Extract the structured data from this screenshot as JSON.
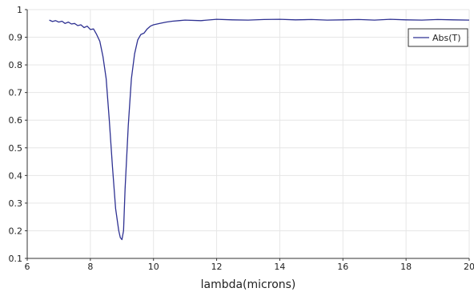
{
  "chart_data": {
    "type": "line",
    "title": "",
    "xlabel": "lambda(microns)",
    "ylabel": "",
    "xlim": [
      6,
      20
    ],
    "ylim": [
      0.1,
      1
    ],
    "xticks": [
      6,
      8,
      10,
      12,
      14,
      16,
      18,
      20
    ],
    "yticks": [
      0.1,
      0.2,
      0.3,
      0.4,
      0.5,
      0.6,
      0.7,
      0.8,
      0.9,
      1
    ],
    "xtick_labels": [
      "6",
      "8",
      "10",
      "12",
      "14",
      "16",
      "18",
      "20"
    ],
    "ytick_labels": [
      "0.1",
      "0.2",
      "0.3",
      "0.4",
      "0.5",
      "0.6",
      "0.7",
      "0.8",
      "0.9",
      "1"
    ],
    "grid": true,
    "legend_position": "top-right",
    "series": [
      {
        "name": "Abs(T)",
        "color": "#2e3192",
        "x": [
          6.7,
          6.8,
          6.9,
          7.0,
          7.1,
          7.2,
          7.3,
          7.4,
          7.5,
          7.6,
          7.7,
          7.8,
          7.9,
          8.0,
          8.1,
          8.2,
          8.3,
          8.4,
          8.5,
          8.6,
          8.7,
          8.8,
          8.9,
          8.95,
          9.0,
          9.05,
          9.1,
          9.2,
          9.3,
          9.4,
          9.5,
          9.6,
          9.7,
          9.8,
          9.9,
          10.0,
          10.2,
          10.4,
          10.6,
          10.8,
          11.0,
          11.5,
          12.0,
          12.5,
          13.0,
          13.5,
          14.0,
          14.5,
          15.0,
          15.5,
          16.0,
          16.5,
          17.0,
          17.5,
          18.0,
          18.5,
          19.0,
          19.5,
          20.0
        ],
        "y": [
          0.962,
          0.957,
          0.96,
          0.955,
          0.958,
          0.95,
          0.955,
          0.948,
          0.95,
          0.942,
          0.945,
          0.935,
          0.94,
          0.928,
          0.93,
          0.91,
          0.885,
          0.83,
          0.75,
          0.6,
          0.43,
          0.28,
          0.2,
          0.175,
          0.168,
          0.2,
          0.35,
          0.58,
          0.75,
          0.84,
          0.89,
          0.91,
          0.915,
          0.93,
          0.94,
          0.945,
          0.95,
          0.955,
          0.958,
          0.96,
          0.962,
          0.96,
          0.965,
          0.963,
          0.962,
          0.964,
          0.965,
          0.963,
          0.964,
          0.962,
          0.963,
          0.964,
          0.962,
          0.965,
          0.963,
          0.962,
          0.964,
          0.963,
          0.962
        ]
      }
    ]
  }
}
